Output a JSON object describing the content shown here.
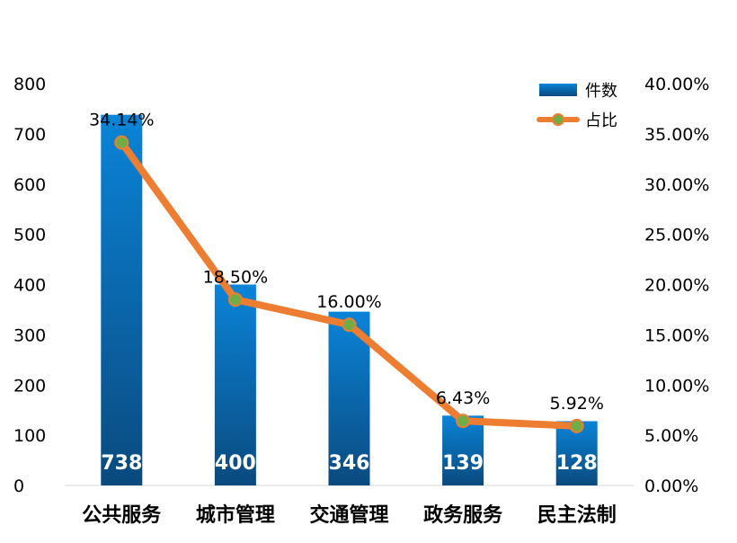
{
  "chart_data": {
    "type": "bar",
    "categories": [
      "公共服务",
      "城市管理",
      "交通管理",
      "政务服务",
      "民主法制"
    ],
    "series": [
      {
        "name": "件数",
        "type": "bar",
        "axis": "left",
        "values": [
          738,
          400,
          346,
          139,
          128
        ],
        "labels": [
          "738",
          "400",
          "346",
          "139",
          "128"
        ]
      },
      {
        "name": "占比",
        "type": "line",
        "axis": "right",
        "values": [
          34.14,
          18.5,
          16.0,
          6.43,
          5.92
        ],
        "labels": [
          "34.14%",
          "18.50%",
          "16.00%",
          "6.43%",
          "5.92%"
        ]
      }
    ],
    "ylim": [
      0,
      800
    ],
    "y_ticks": [
      "0",
      "100",
      "200",
      "300",
      "400",
      "500",
      "600",
      "700",
      "800"
    ],
    "y2lim": [
      0,
      40
    ],
    "y2_ticks": [
      "0.00%",
      "5.00%",
      "10.00%",
      "15.00%",
      "20.00%",
      "25.00%",
      "30.00%",
      "35.00%",
      "40.00%"
    ],
    "legend_position": "top-right",
    "grid": false,
    "colors": {
      "bar_top": "#0a84d8",
      "bar_bottom": "#0a4a7e",
      "line": "#ed7d31",
      "marker": "#70ad47"
    }
  }
}
